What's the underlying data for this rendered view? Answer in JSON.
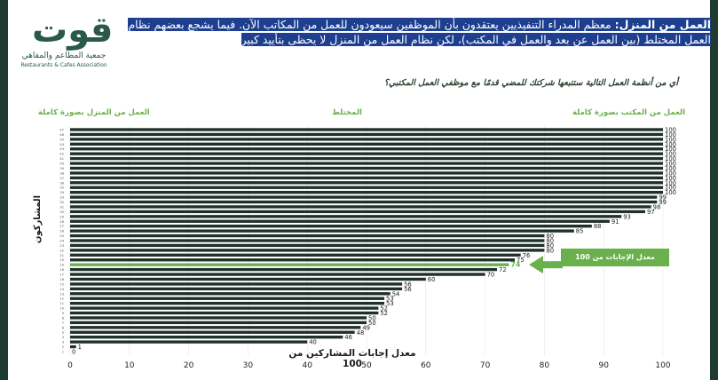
{
  "brand": {
    "logo_mark": "قوت",
    "name_ar": "جمعية المطاعم والمقاهي",
    "name_en": "Restaurants & Cafes Association"
  },
  "headline": {
    "lead": "العمل من المنزل:",
    "text": " معظم المدراء التنفيذيين يعتقدون بأن الموظفين سيعودون للعمل من المكاتب الآن. فيما يشجع بعضهم نظام العمل المختلط (بين العمل عن بعد والعمل في المكتب)، لكن نظام العمل من المنزل لا يحظى بتأييد كبير"
  },
  "question": "أي من أنظمة العمل التالية ستتبعها شركتك للمضي قدمًا مع موظفي العمل المكتبي؟",
  "categories": {
    "office": "العمل من المكتب بصورة كاملة",
    "hybrid": "المختلط",
    "home": "العمل من المنزل بصورة كاملة"
  },
  "callout": {
    "text": "معدل الإجابات من 100",
    "value": "74"
  },
  "colors": {
    "bar": "#1f2f2a",
    "accent": "#6ab04c",
    "headline_bg": "#1e3f8f",
    "side_bar": "#1f3b30"
  },
  "chart_data": {
    "type": "bar",
    "orientation": "horizontal",
    "xlabel": "معدل إجابات المشاركين من 100",
    "ylabel": "المشاركون",
    "xlim": [
      0,
      100
    ],
    "xticks": [
      0,
      10,
      20,
      30,
      40,
      50,
      60,
      70,
      80,
      90,
      100
    ],
    "values": [
      0,
      1,
      40,
      46,
      48,
      49,
      50,
      50,
      52,
      52,
      53,
      53,
      54,
      56,
      56,
      60,
      70,
      72,
      74,
      75,
      76,
      80,
      80,
      80,
      80,
      85,
      88,
      91,
      93,
      97,
      98,
      99,
      99,
      100,
      100,
      100,
      100,
      100,
      100,
      100,
      100,
      100,
      100,
      100,
      100,
      100,
      100
    ],
    "highlight_value": 74
  }
}
